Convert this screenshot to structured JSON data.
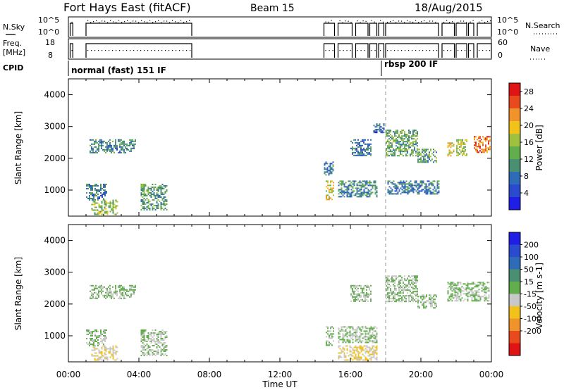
{
  "header": {
    "station": "Fort Hays East (fitACF)",
    "beam": "Beam 15",
    "date": "18/Aug/2015"
  },
  "params": {
    "nsky_label": "N.Sky",
    "nsky_ticks": [
      "10^5",
      "10^0"
    ],
    "nsearch_label": "N.Search",
    "nsearch_ticks": [
      "10^5",
      "10^0"
    ],
    "freq_label": "Freq.",
    "freq_unit": "[MHz]",
    "freq_ticks": [
      "18",
      "8"
    ],
    "nave_label": "Nave",
    "nave_ticks": [
      "60",
      "0"
    ],
    "cpid_label": "CPID",
    "cpid_modes": [
      {
        "name": "normal (fast) 151 IF",
        "start_hour": 0.0
      },
      {
        "name": "rbsp 200 IF",
        "start_hour": 18.0
      }
    ]
  },
  "colors": {
    "power_scale": [
      "#1e1ee6",
      "#2a4bd0",
      "#2f6cb8",
      "#4a8f72",
      "#62ad4d",
      "#a0c040",
      "#f2c21a",
      "#f0932a",
      "#e84a1e",
      "#e01414"
    ],
    "velocity_scale": [
      "#1e1ee6",
      "#2a4bd0",
      "#2f6cb8",
      "#4a8f72",
      "#62ad4d",
      "#c8c8c8",
      "#f2c21a",
      "#f0932a",
      "#e84a1e",
      "#e01414"
    ]
  },
  "chart_data": [
    {
      "type": "heatmap",
      "panel": "power",
      "xlabel": "Time UT",
      "ylabel": "Slant Range [km]",
      "xlim": [
        0,
        24
      ],
      "ylim": [
        180,
        4500
      ],
      "x_ticks": [
        "00:00",
        "04:00",
        "08:00",
        "12:00",
        "16:00",
        "20:00",
        "00:00"
      ],
      "y_ticks": [
        "1000",
        "2000",
        "3000",
        "4000"
      ],
      "colorbar_label": "Power [dB]",
      "colorbar_ticks": [
        "4",
        "8",
        "12",
        "16",
        "20",
        "24",
        "28"
      ],
      "clim": [
        0,
        30
      ],
      "marker_line_hour": 18.0,
      "regions": [
        {
          "t0": 1.0,
          "t1": 2.2,
          "r0": 700,
          "r1": 1200,
          "v": 9
        },
        {
          "t0": 1.3,
          "t1": 2.8,
          "r0": 250,
          "r1": 700,
          "v": 15
        },
        {
          "t0": 1.2,
          "t1": 3.8,
          "r0": 2200,
          "r1": 2600,
          "v": 10
        },
        {
          "t0": 4.1,
          "t1": 5.6,
          "r0": 400,
          "r1": 1200,
          "v": 12
        },
        {
          "t0": 14.6,
          "t1": 15.0,
          "r0": 700,
          "r1": 1300,
          "v": 18
        },
        {
          "t0": 14.5,
          "t1": 15.0,
          "r0": 1500,
          "r1": 1900,
          "v": 8
        },
        {
          "t0": 15.3,
          "t1": 17.5,
          "r0": 800,
          "r1": 1300,
          "v": 10
        },
        {
          "t0": 16.0,
          "t1": 17.2,
          "r0": 2100,
          "r1": 2600,
          "v": 8
        },
        {
          "t0": 17.3,
          "t1": 17.9,
          "r0": 2800,
          "r1": 3100,
          "v": 7
        },
        {
          "t0": 18.0,
          "t1": 19.8,
          "r0": 2100,
          "r1": 2900,
          "v": 13
        },
        {
          "t0": 18.1,
          "t1": 21.0,
          "r0": 900,
          "r1": 1300,
          "v": 8
        },
        {
          "t0": 19.8,
          "t1": 20.9,
          "r0": 1900,
          "r1": 2300,
          "v": 12
        },
        {
          "t0": 21.5,
          "t1": 21.9,
          "r0": 2100,
          "r1": 2500,
          "v": 18
        },
        {
          "t0": 22.0,
          "t1": 22.6,
          "r0": 2100,
          "r1": 2600,
          "v": 16
        },
        {
          "t0": 23.0,
          "t1": 23.9,
          "r0": 2200,
          "r1": 2700,
          "v": 24
        }
      ]
    },
    {
      "type": "heatmap",
      "panel": "velocity",
      "xlabel": "Time UT",
      "ylabel": "Slant Range [km]",
      "xlim": [
        0,
        24
      ],
      "ylim": [
        180,
        4500
      ],
      "x_ticks": [
        "00:00",
        "04:00",
        "08:00",
        "12:00",
        "16:00",
        "20:00",
        "00:00"
      ],
      "y_ticks": [
        "1000",
        "2000",
        "3000",
        "4000"
      ],
      "colorbar_label": "Velocity [m s-1]",
      "colorbar_ticks": [
        "200",
        "100",
        "50",
        "15",
        "-15",
        "-50",
        "-100",
        "-200"
      ],
      "clim": [
        -250,
        250
      ],
      "marker_line_hour": 18.0,
      "regions": [
        {
          "t0": 1.0,
          "t1": 2.2,
          "r0": 700,
          "r1": 1200,
          "v": 0
        },
        {
          "t0": 1.3,
          "t1": 2.8,
          "r0": 250,
          "r1": 700,
          "v": -40
        },
        {
          "t0": 1.2,
          "t1": 3.8,
          "r0": 2200,
          "r1": 2600,
          "v": 5
        },
        {
          "t0": 4.1,
          "t1": 5.6,
          "r0": 400,
          "r1": 1200,
          "v": 0
        },
        {
          "t0": 14.6,
          "t1": 15.0,
          "r0": 700,
          "r1": 1300,
          "v": 0
        },
        {
          "t0": 15.3,
          "t1": 17.5,
          "r0": 800,
          "r1": 1300,
          "v": 0
        },
        {
          "t0": 15.3,
          "t1": 17.5,
          "r0": 250,
          "r1": 700,
          "v": -50
        },
        {
          "t0": 16.0,
          "t1": 17.2,
          "r0": 2100,
          "r1": 2600,
          "v": 0
        },
        {
          "t0": 18.0,
          "t1": 19.8,
          "r0": 2100,
          "r1": 2900,
          "v": 0
        },
        {
          "t0": 19.8,
          "t1": 20.9,
          "r0": 1900,
          "r1": 2300,
          "v": 0
        },
        {
          "t0": 21.5,
          "t1": 23.9,
          "r0": 2100,
          "r1": 2700,
          "v": 0
        }
      ]
    }
  ]
}
